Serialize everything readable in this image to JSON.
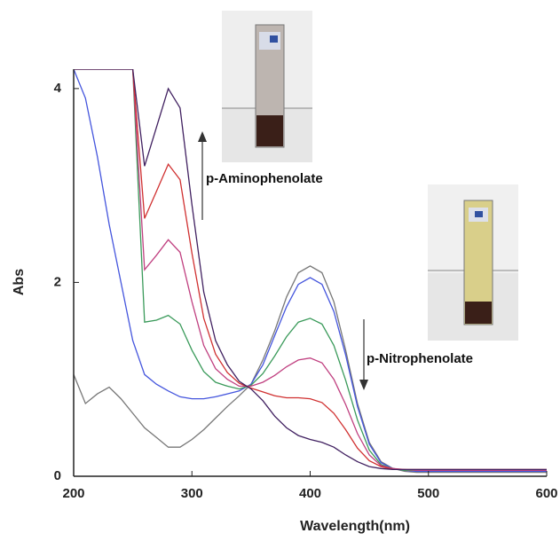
{
  "chart_data": {
    "type": "line",
    "x_label": "Wavelength(nm)",
    "y_label": "Abs",
    "annotations": [
      "p-Aminophenolate",
      "p-Nitrophenolate"
    ],
    "xlim": [
      200,
      600
    ],
    "ylim": [
      0,
      4.2
    ],
    "xticks": [
      200,
      300,
      400,
      500,
      600
    ],
    "yticks": [
      0,
      2,
      4
    ],
    "x": [
      200,
      210,
      220,
      230,
      240,
      250,
      260,
      270,
      280,
      290,
      300,
      310,
      320,
      330,
      340,
      350,
      360,
      370,
      380,
      390,
      400,
      410,
      420,
      430,
      440,
      450,
      460,
      470,
      480,
      490,
      500,
      510,
      520,
      530,
      540,
      550,
      560,
      570,
      580,
      590,
      600
    ],
    "series": [
      {
        "color": "#777777",
        "values": [
          1.05,
          0.75,
          0.85,
          0.92,
          0.8,
          0.65,
          0.5,
          0.4,
          0.3,
          0.3,
          0.38,
          0.48,
          0.6,
          0.72,
          0.83,
          0.95,
          1.2,
          1.5,
          1.85,
          2.1,
          2.17,
          2.1,
          1.8,
          1.3,
          0.75,
          0.35,
          0.15,
          0.08,
          0.05,
          0.04,
          0.04,
          0.04,
          0.04,
          0.04,
          0.04,
          0.04,
          0.04,
          0.04,
          0.04,
          0.04,
          0.04
        ]
      },
      {
        "color": "#4455dd",
        "values": [
          4.2,
          3.9,
          3.3,
          2.6,
          2.0,
          1.4,
          1.05,
          0.95,
          0.88,
          0.82,
          0.8,
          0.8,
          0.82,
          0.85,
          0.88,
          0.95,
          1.15,
          1.45,
          1.75,
          1.98,
          2.05,
          1.98,
          1.7,
          1.25,
          0.72,
          0.33,
          0.14,
          0.08,
          0.06,
          0.05,
          0.05,
          0.05,
          0.05,
          0.05,
          0.05,
          0.05,
          0.05,
          0.05,
          0.05,
          0.05,
          0.05
        ]
      },
      {
        "color": "#3a9a5a",
        "values": [
          4.2,
          4.2,
          4.2,
          4.2,
          4.2,
          4.2,
          1.59,
          1.61,
          1.66,
          1.57,
          1.3,
          1.08,
          0.97,
          0.93,
          0.9,
          0.94,
          1.06,
          1.24,
          1.44,
          1.59,
          1.63,
          1.57,
          1.35,
          0.99,
          0.58,
          0.27,
          0.12,
          0.08,
          0.06,
          0.06,
          0.06,
          0.06,
          0.06,
          0.06,
          0.06,
          0.06,
          0.06,
          0.06,
          0.06,
          0.06,
          0.06
        ]
      },
      {
        "color": "#c04080",
        "values": [
          4.2,
          4.2,
          4.2,
          4.2,
          4.2,
          4.2,
          2.13,
          2.28,
          2.44,
          2.31,
          1.8,
          1.35,
          1.11,
          1.0,
          0.93,
          0.93,
          0.97,
          1.04,
          1.13,
          1.2,
          1.22,
          1.17,
          1.0,
          0.74,
          0.44,
          0.22,
          0.11,
          0.08,
          0.07,
          0.06,
          0.06,
          0.06,
          0.06,
          0.06,
          0.06,
          0.06,
          0.06,
          0.06,
          0.06,
          0.06,
          0.06
        ]
      },
      {
        "color": "#d03030",
        "values": [
          4.2,
          4.2,
          4.2,
          4.2,
          4.2,
          4.2,
          2.66,
          2.94,
          3.22,
          3.06,
          2.3,
          1.63,
          1.26,
          1.07,
          0.96,
          0.91,
          0.87,
          0.83,
          0.81,
          0.81,
          0.8,
          0.76,
          0.65,
          0.48,
          0.29,
          0.16,
          0.1,
          0.07,
          0.07,
          0.07,
          0.07,
          0.07,
          0.07,
          0.07,
          0.07,
          0.07,
          0.07,
          0.07,
          0.07,
          0.07,
          0.07
        ]
      },
      {
        "color": "#402060",
        "values": [
          4.2,
          4.2,
          4.2,
          4.2,
          4.2,
          4.2,
          3.2,
          3.6,
          4.0,
          3.8,
          2.8,
          1.9,
          1.4,
          1.15,
          0.98,
          0.9,
          0.78,
          0.62,
          0.5,
          0.42,
          0.38,
          0.35,
          0.3,
          0.22,
          0.15,
          0.1,
          0.08,
          0.07,
          0.07,
          0.07,
          0.07,
          0.07,
          0.07,
          0.07,
          0.07,
          0.07,
          0.07,
          0.07,
          0.07,
          0.07,
          0.07
        ]
      }
    ]
  }
}
